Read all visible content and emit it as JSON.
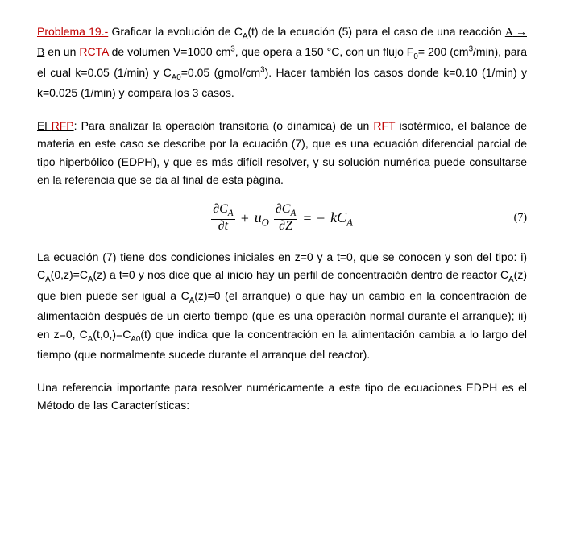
{
  "colors": {
    "accent": "#c00000",
    "text": "#000000",
    "bg": "#ffffff"
  },
  "typography": {
    "body_font": "Comic Sans MS",
    "body_size_pt": 11,
    "eq_font": "Times New Roman",
    "eq_size_pt": 14
  },
  "p1": {
    "label": "Problema 19.-",
    "t1": " Graficar la evolución de C",
    "sub1": "A",
    "t2": "(t) de la ecuación (5) para el caso de una reacción ",
    "react_a": "A",
    "arrow": " → ",
    "react_b": "B",
    "t3": " en un ",
    "rcta": "RCTA",
    "t4": " de volumen V=1000 cm",
    "sup1": "3",
    "t5": ", que opera a 150 °C, con un flujo F",
    "sub2": "0",
    "t6": "= 200 (cm",
    "sup2": "3",
    "t7": "/min), para el cual k=0.05 (1/min) y C",
    "sub3": "A0",
    "t8": "=0.05 (gmol/cm",
    "sup3": "3",
    "t9": ").  Hacer también los casos donde k=0.10 (1/min) y k=0.025 (1/min) y compara los 3 casos."
  },
  "p2": {
    "label": "El ",
    "rfp": "RFP",
    "t1": ": Para analizar la operación transitoria (o dinámica) de un ",
    "rft": "RFT",
    "t2": " isotérmico, el balance de materia en este caso se describe por la ecuación (7), que es una ecuación diferencial parcial de tipo hiperbólico (EDPH), y que es más difícil resolver, y su solución numérica puede consultarse en la referencia que se da al final de esta página."
  },
  "eq": {
    "d": "∂",
    "ca_num1": "∂C",
    "ca_sub": "A",
    "dt": "∂t",
    "plus": "+",
    "u": "u",
    "u_sub": "O",
    "dz": "∂Z",
    "eq_sign": "= −",
    "k": "kC",
    "num": "(7)"
  },
  "p3": {
    "t1": "La ecuación (7) tiene dos condiciones iniciales en z=0 y a t=0, que se conocen y son del tipo:  i)  C",
    "sub1": "A",
    "t2": "(0,z)=C",
    "sub2": "A",
    "t3": "(z)  a t=0 y nos dice que al inicio hay un perfil de concentración dentro de reactor C",
    "sub3": "A",
    "t4": "(z) que bien puede ser igual a C",
    "sub4": "A",
    "t5": "(z)=0 (el arranque) o que hay un cambio en la concentración de alimentación después de un cierto tiempo (que es una operación normal durante el arranque); ii) en z=0, C",
    "sub5": "A",
    "t6": "(t,0,)=C",
    "sub6": "A0",
    "t7": "(t) que indica que la concentración en la alimentación cambia a lo largo del tiempo (que normalmente sucede durante el arranque del reactor)."
  },
  "p4": {
    "t1": "Una referencia importante para resolver numéricamente a este tipo de ecuaciones EDPH es el Método de las Características:"
  }
}
